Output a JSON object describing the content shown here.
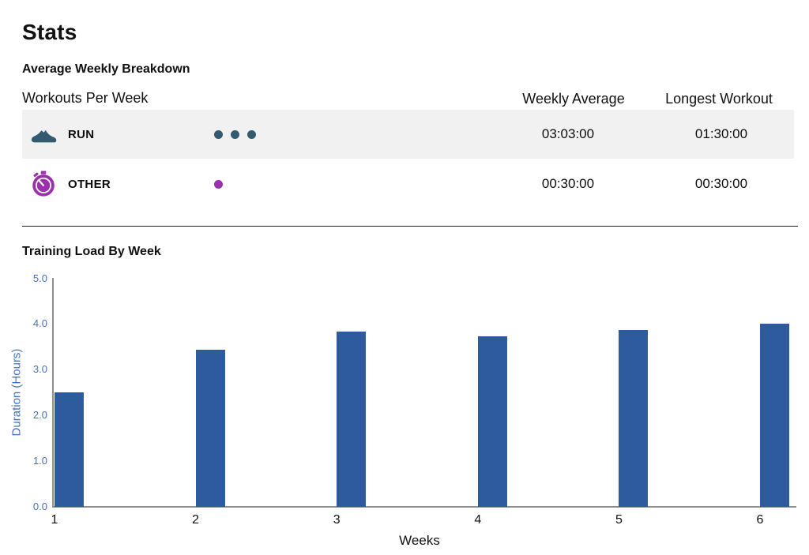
{
  "page": {
    "title": "Stats"
  },
  "breakdown": {
    "heading": "Average Weekly Breakdown",
    "col_workouts": "Workouts Per Week",
    "col_weekly_avg": "Weekly Average",
    "col_longest": "Longest Workout",
    "rows": [
      {
        "label": "RUN",
        "icon": "run-shoe-icon",
        "dots": 3,
        "dot_color": "#335a6e",
        "weekly_average": "03:03:00",
        "longest_workout": "01:30:00",
        "highlighted": true
      },
      {
        "label": "OTHER",
        "icon": "stopwatch-icon",
        "dots": 1,
        "dot_color": "#9b2fae",
        "weekly_average": "00:30:00",
        "longest_workout": "00:30:00",
        "highlighted": false
      }
    ]
  },
  "chart_section": {
    "heading": "Training Load By Week"
  },
  "chart_data": {
    "type": "bar",
    "title": "Training Load By Week",
    "categories": [
      "1",
      "2",
      "3",
      "4",
      "5",
      "6"
    ],
    "values": [
      2.5,
      3.43,
      3.83,
      3.73,
      3.87,
      4.0
    ],
    "xlabel": "Weeks",
    "ylabel": "Duration (Hours)",
    "ylim": [
      0,
      5
    ],
    "yticks": [
      "0.0",
      "1.0",
      "2.0",
      "3.0",
      "4.0",
      "5.0"
    ],
    "grid": false,
    "legend": false,
    "bar_color": "#2e5b9e",
    "axis_color": "#8e8e8e",
    "tick_label_color": "#4470c2"
  },
  "colors": {
    "run_accent": "#335a6e",
    "other_accent": "#9b2fae",
    "bar": "#2e5b9e",
    "axis_text": "#4470c2",
    "row_highlight": "#f1f1f2"
  }
}
